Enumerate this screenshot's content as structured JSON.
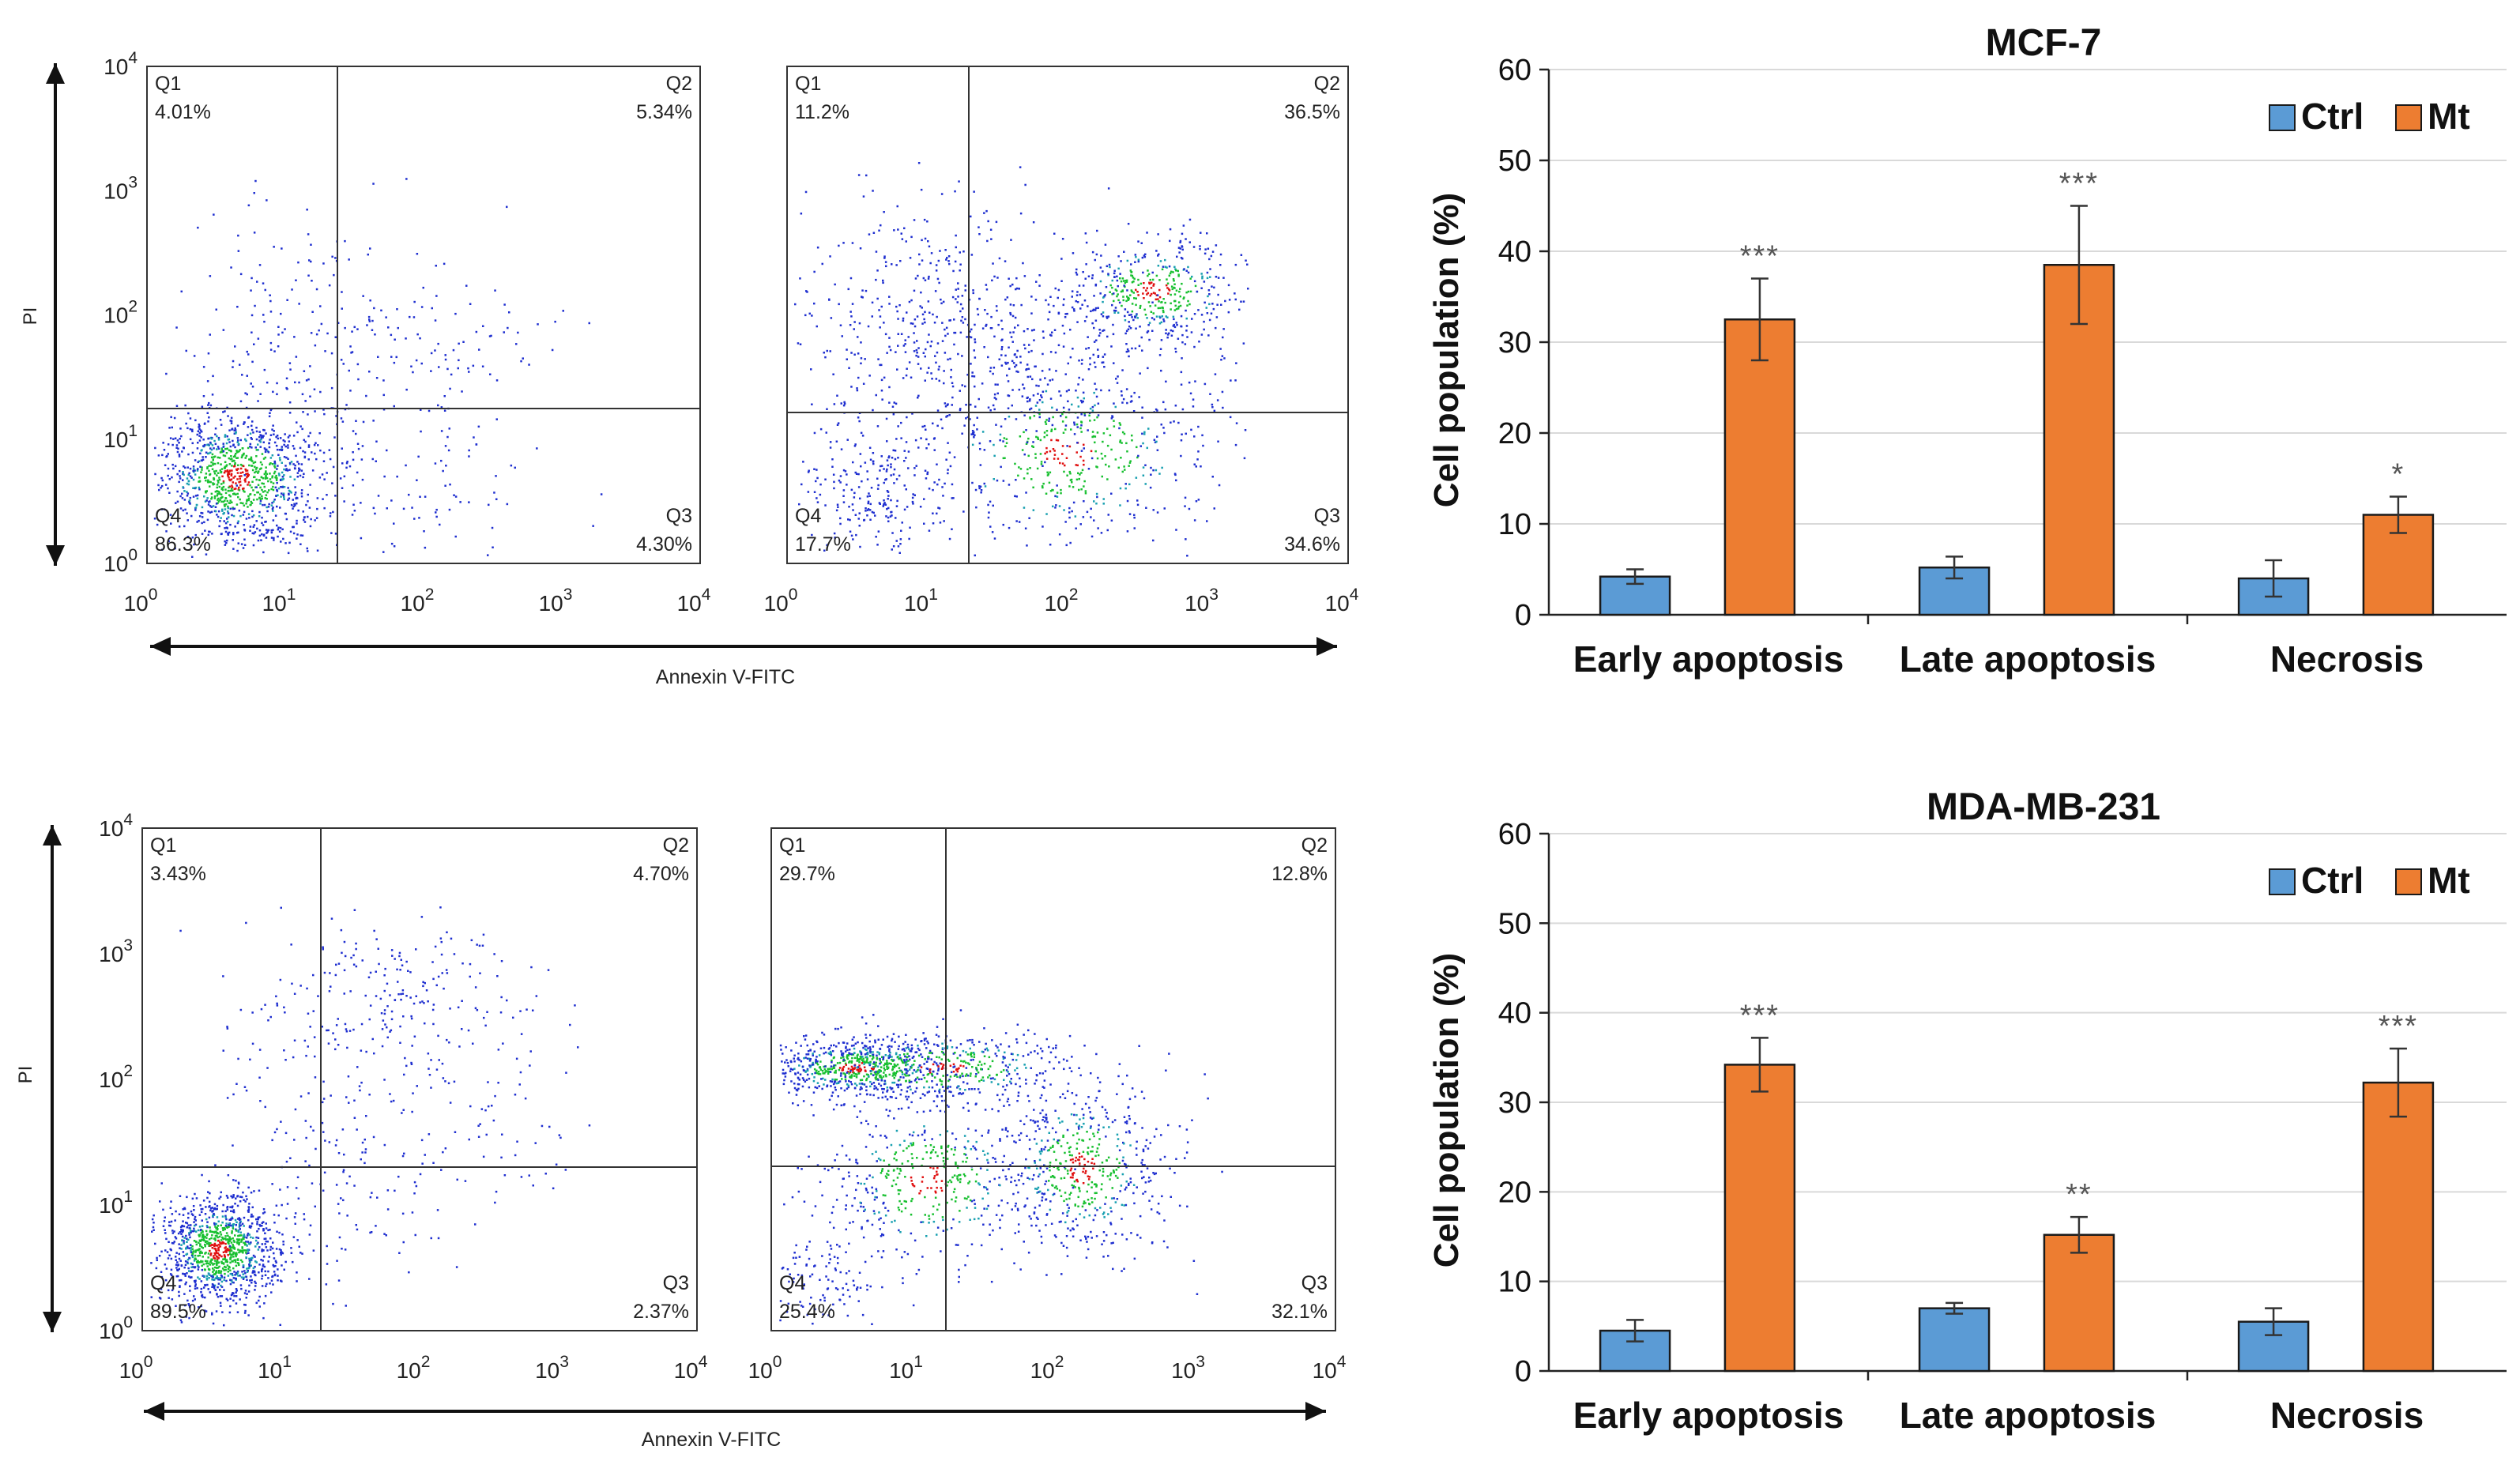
{
  "flow_cytometry": {
    "axis_x_label": "Annexin V-FITC",
    "axis_y_label": "PI",
    "tick_labels": [
      "10",
      "10",
      "10",
      "10",
      "10"
    ],
    "tick_exponents": [
      "0",
      "1",
      "2",
      "3",
      "4"
    ],
    "quadrant_names": [
      "Q1",
      "Q2",
      "Q3",
      "Q4"
    ],
    "rows": [
      {
        "panels": [
          {
            "quadrants": {
              "Q1": "4.01%",
              "Q2": "5.34%",
              "Q3": "4.30%",
              "Q4": "86.3%"
            }
          },
          {
            "quadrants": {
              "Q1": "11.2%",
              "Q2": "36.5%",
              "Q3": "34.6%",
              "Q4": "17.7%"
            }
          }
        ]
      },
      {
        "panels": [
          {
            "quadrants": {
              "Q1": "3.43%",
              "Q2": "4.70%",
              "Q3": "2.37%",
              "Q4": "89.5%"
            }
          },
          {
            "quadrants": {
              "Q1": "29.7%",
              "Q2": "12.8%",
              "Q3": "32.1%",
              "Q4": "25.4%"
            }
          }
        ]
      }
    ]
  },
  "colors": {
    "ctrl": "#5B9BD5",
    "mt": "#ED7D31",
    "bar_stroke": "#1a1a1a",
    "dots_low": "#1f2fd0",
    "dots_mid": "#18c030",
    "dots_high": "#e01010",
    "gridline": "#d9d9d9"
  },
  "chart_data": [
    {
      "type": "bar",
      "title": "MCF-7",
      "ylabel": "Cell population (%)",
      "xlabel": "",
      "ylim": [
        0,
        60
      ],
      "yticks": [
        0,
        10,
        20,
        30,
        40,
        50,
        60
      ],
      "grid": true,
      "legend": "top-right",
      "categories": [
        "Early apoptosis",
        "Late apoptosis",
        "Necrosis"
      ],
      "series": [
        {
          "name": "Ctrl",
          "values": [
            4.2,
            5.2,
            4.0
          ],
          "errors": [
            0.8,
            1.2,
            2.0
          ],
          "sig": [
            "",
            "",
            ""
          ]
        },
        {
          "name": "Mt",
          "values": [
            32.5,
            38.5,
            11.0
          ],
          "errors": [
            4.5,
            6.5,
            2.0
          ],
          "sig": [
            "***",
            "***",
            "*"
          ]
        }
      ]
    },
    {
      "type": "bar",
      "title": "MDA-MB-231",
      "ylabel": "Cell population (%)",
      "xlabel": "",
      "ylim": [
        0,
        60
      ],
      "yticks": [
        0,
        10,
        20,
        30,
        40,
        50,
        60
      ],
      "grid": true,
      "legend": "top-right",
      "categories": [
        "Early apoptosis",
        "Late apoptosis",
        "Necrosis"
      ],
      "series": [
        {
          "name": "Ctrl",
          "values": [
            4.5,
            7.0,
            5.5
          ],
          "errors": [
            1.2,
            0.6,
            1.5
          ],
          "sig": [
            "",
            "",
            ""
          ]
        },
        {
          "name": "Mt",
          "values": [
            34.2,
            15.2,
            32.2
          ],
          "errors": [
            3.0,
            2.0,
            3.8
          ],
          "sig": [
            "***",
            "**",
            "***"
          ]
        }
      ]
    }
  ]
}
